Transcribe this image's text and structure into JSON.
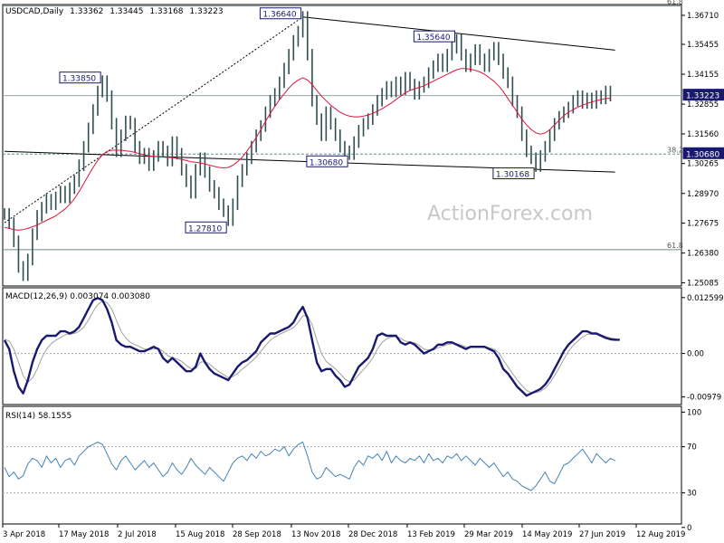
{
  "chart_data": {
    "type": "line",
    "price_panel": {
      "title": "USDCAD,Daily",
      "ohlc": [
        "1.33362",
        "1.33445",
        "1.33168",
        "1.33223"
      ],
      "current_price": "1.33223",
      "ylim": [
        1.2495,
        1.3718
      ],
      "y_ticks": [
        1.3671,
        1.3545,
        1.3415,
        1.3285,
        1.3156,
        1.3027,
        1.2897,
        1.2768,
        1.2638,
        1.2509
      ],
      "y_tick_labels": [
        "1.36710",
        "1.35455",
        "1.34155",
        "1.32855",
        "1.31560",
        "1.30265",
        "1.28970",
        "1.27675",
        "1.26380",
        "1.25085"
      ],
      "fib_levels": [
        {
          "label": "61.8",
          "value": 1.3712
        },
        {
          "label": "38.2",
          "value": 1.3068
        },
        {
          "label": "61.8",
          "value": 1.2653
        }
      ],
      "price_level_right": "1.30680",
      "series": [
        {
          "name": "price",
          "color": "#2f4f4f",
          "values": [
            1.2808,
            1.2768,
            1.2689,
            1.2578,
            1.2542,
            1.261,
            1.272,
            1.28,
            1.2835,
            1.287,
            1.285,
            1.288,
            1.2905,
            1.288,
            1.292,
            1.295,
            1.302,
            1.31,
            1.318,
            1.326,
            1.334,
            1.3385,
            1.332,
            1.32,
            1.308,
            1.315,
            1.321,
            1.32,
            1.31,
            1.305,
            1.307,
            1.302,
            1.306,
            1.31,
            1.308,
            1.304,
            1.312,
            1.307,
            1.3,
            1.295,
            1.29,
            1.3,
            1.305,
            1.299,
            1.293,
            1.29,
            1.285,
            1.282,
            1.2781,
            1.285,
            1.295,
            1.3,
            1.305,
            1.31,
            1.315,
            1.319,
            1.325,
            1.33,
            1.333,
            1.338,
            1.344,
            1.35,
            1.356,
            1.36,
            1.3664,
            1.35,
            1.33,
            1.322,
            1.315,
            1.325,
            1.32,
            1.315,
            1.31,
            1.308,
            1.3068,
            1.312,
            1.317,
            1.32,
            1.322,
            1.326,
            1.33,
            1.333,
            1.336,
            1.334,
            1.338,
            1.335,
            1.34,
            1.337,
            1.333,
            1.336,
            1.338,
            1.342,
            1.345,
            1.348,
            1.345,
            1.35,
            1.353,
            1.3564,
            1.35,
            1.345,
            1.348,
            1.352,
            1.348,
            1.345,
            1.35,
            1.353,
            1.348,
            1.342,
            1.338,
            1.33,
            1.325,
            1.315,
            1.308,
            1.305,
            1.3016,
            1.306,
            1.31,
            1.315,
            1.32,
            1.323,
            1.325,
            1.327,
            1.33,
            1.332,
            1.329,
            1.331,
            1.329,
            1.332,
            1.331,
            1.334,
            1.3322
          ]
        },
        {
          "name": "ma",
          "color": "#dc143c",
          "values": [
            1.275,
            1.2745,
            1.274,
            1.2738,
            1.274,
            1.2745,
            1.2752,
            1.276,
            1.277,
            1.278,
            1.279,
            1.28,
            1.2815,
            1.283,
            1.285,
            1.2875,
            1.2905,
            1.294,
            1.2975,
            1.301,
            1.304,
            1.3065,
            1.308,
            1.3085,
            1.3085,
            1.3085,
            1.3082,
            1.308,
            1.3075,
            1.307,
            1.3065,
            1.306,
            1.3058,
            1.3056,
            1.3055,
            1.3054,
            1.3053,
            1.305,
            1.3045,
            1.304,
            1.3035,
            1.3033,
            1.303,
            1.3025,
            1.302,
            1.3015,
            1.301,
            1.3008,
            1.301,
            1.302,
            1.3035,
            1.3055,
            1.308,
            1.311,
            1.314,
            1.3175,
            1.321,
            1.3245,
            1.3275,
            1.3305,
            1.333,
            1.3355,
            1.3375,
            1.339,
            1.34,
            1.339,
            1.337,
            1.3345,
            1.332,
            1.33,
            1.328,
            1.3265,
            1.325,
            1.324,
            1.3233,
            1.323,
            1.323,
            1.3233,
            1.3238,
            1.3245,
            1.3255,
            1.3265,
            1.3278,
            1.329,
            1.3305,
            1.332,
            1.3335,
            1.3345,
            1.3352,
            1.3358,
            1.3365,
            1.3375,
            1.3385,
            1.3395,
            1.3405,
            1.3415,
            1.3425,
            1.3435,
            1.344,
            1.344,
            1.3437,
            1.3432,
            1.3425,
            1.3415,
            1.34,
            1.3385,
            1.3365,
            1.334,
            1.331,
            1.328,
            1.325,
            1.322,
            1.3195,
            1.3175,
            1.316,
            1.3155,
            1.316,
            1.3175,
            1.3195,
            1.3215,
            1.3235,
            1.325,
            1.3262,
            1.3272,
            1.328,
            1.3288,
            1.3295,
            1.33,
            1.3305,
            1.331,
            1.331
          ]
        }
      ],
      "annotations": [
        {
          "label": "1.36640",
          "i": 64,
          "value": 1.3664
        },
        {
          "label": "1.33850",
          "i": 21,
          "value": 1.3385
        },
        {
          "label": "1.35640",
          "i": 97,
          "value": 1.3564
        },
        {
          "label": "1.27810",
          "i": 48,
          "value": 1.2781
        },
        {
          "label": "1.30680",
          "i": 74,
          "value": 1.3068
        },
        {
          "label": "1.30168",
          "i": 114,
          "value": 1.3016
        }
      ],
      "trendlines": [
        {
          "style": "dotted",
          "from": [
            0,
            1.277
          ],
          "to": [
            64,
            1.3664
          ]
        },
        {
          "style": "solid",
          "from": [
            64,
            1.3664
          ],
          "to": [
            131,
            1.352
          ]
        },
        {
          "style": "solid",
          "from": [
            0,
            1.308
          ],
          "to": [
            131,
            1.299
          ]
        }
      ],
      "watermark": "ActionForex.com"
    },
    "macd_panel": {
      "title": "MACD(12,26,9) 0.003074 0.003080",
      "ylim": [
        -0.0115,
        0.0148
      ],
      "y_ticks": [
        0.012599,
        0.0,
        -0.00979
      ],
      "y_tick_labels": [
        "0.012599",
        "0.00",
        "-0.00979"
      ],
      "series": [
        {
          "name": "macd",
          "color": "#191970",
          "values": [
            0.003,
            0.001,
            -0.004,
            -0.0075,
            -0.009,
            -0.006,
            -0.002,
            0.001,
            0.003,
            0.004,
            0.004,
            0.004,
            0.005,
            0.005,
            0.0045,
            0.005,
            0.006,
            0.008,
            0.01,
            0.012,
            0.0125,
            0.012,
            0.01,
            0.007,
            0.003,
            0.002,
            0.0015,
            0.0015,
            0.001,
            0.0005,
            0.0005,
            0.001,
            0.0015,
            0.001,
            -0.001,
            -0.002,
            -0.001,
            -0.002,
            -0.003,
            -0.004,
            -0.004,
            -0.003,
            0.0,
            -0.002,
            -0.0035,
            -0.0045,
            -0.005,
            -0.0055,
            -0.006,
            -0.0045,
            -0.003,
            -0.002,
            -0.0015,
            -0.0005,
            0.0005,
            0.0025,
            0.0035,
            0.0045,
            0.0045,
            0.005,
            0.0055,
            0.006,
            0.007,
            0.009,
            0.0105,
            0.008,
            0.003,
            -0.002,
            -0.004,
            -0.0035,
            -0.0035,
            -0.005,
            -0.006,
            -0.0075,
            -0.007,
            -0.005,
            -0.003,
            -0.002,
            -0.001,
            0.001,
            0.004,
            0.0045,
            0.004,
            0.004,
            0.004,
            0.0025,
            0.002,
            0.0025,
            0.002,
            0.001,
            0.0,
            0.0005,
            0.001,
            0.002,
            0.002,
            0.0025,
            0.0025,
            0.002,
            0.0015,
            0.001,
            0.0015,
            0.0015,
            0.0015,
            0.0015,
            0.001,
            0.0005,
            -0.001,
            -0.0035,
            -0.0045,
            -0.006,
            -0.0075,
            -0.0085,
            -0.0095,
            -0.009,
            -0.0085,
            -0.008,
            -0.007,
            -0.0055,
            -0.0035,
            -0.0015,
            0.0005,
            0.002,
            0.003,
            0.004,
            0.005,
            0.005,
            0.0045,
            0.0045,
            0.004,
            0.0035,
            0.0032,
            0.0031,
            0.0031
          ]
        },
        {
          "name": "signal",
          "color": "#a0a0a0",
          "values": [
            0.0032,
            0.0028,
            0.001,
            -0.002,
            -0.005,
            -0.0065,
            -0.0055,
            -0.0035,
            -0.001,
            0.001,
            0.0022,
            0.003,
            0.0036,
            0.0042,
            0.0044,
            0.0045,
            0.005,
            0.006,
            0.0075,
            0.0095,
            0.011,
            0.0118,
            0.0115,
            0.01,
            0.0075,
            0.005,
            0.0035,
            0.0025,
            0.002,
            0.0015,
            0.001,
            0.0009,
            0.001,
            0.0011,
            0.0005,
            -0.0005,
            -0.001,
            -0.0012,
            -0.0018,
            -0.0027,
            -0.0034,
            -0.0034,
            -0.002,
            -0.0018,
            -0.0024,
            -0.0033,
            -0.0041,
            -0.0048,
            -0.0054,
            -0.0052,
            -0.0045,
            -0.0035,
            -0.0027,
            -0.0018,
            -0.0008,
            0.0005,
            0.0018,
            0.003,
            0.0037,
            0.0043,
            0.0048,
            0.0053,
            0.0058,
            0.007,
            0.0085,
            0.0085,
            0.0065,
            0.003,
            0.0,
            -0.0018,
            -0.0026,
            -0.0035,
            -0.0045,
            -0.0057,
            -0.0064,
            -0.006,
            -0.0048,
            -0.0036,
            -0.0024,
            -0.001,
            0.001,
            0.0025,
            0.0033,
            0.0037,
            0.0039,
            0.0034,
            0.0028,
            0.0026,
            0.0024,
            0.0018,
            0.001,
            0.0008,
            0.0008,
            0.0013,
            0.0016,
            0.002,
            0.0022,
            0.0022,
            0.0019,
            0.0015,
            0.0015,
            0.0015,
            0.0015,
            0.0015,
            0.0013,
            0.001,
            0.0002,
            -0.0015,
            -0.003,
            -0.0045,
            -0.006,
            -0.0072,
            -0.0083,
            -0.0088,
            -0.0088,
            -0.0085,
            -0.0078,
            -0.0066,
            -0.005,
            -0.0032,
            -0.0013,
            0.0005,
            0.0018,
            0.0028,
            0.0037,
            0.0043,
            0.0044,
            0.0044,
            0.0042,
            0.0038,
            0.0035,
            0.0033,
            0.0031
          ]
        }
      ]
    },
    "rsi_panel": {
      "title": "RSI(14) 58.1555",
      "ylim": [
        3,
        105
      ],
      "y_ticks": [
        100,
        70,
        30,
        0
      ],
      "y_tick_labels": [
        "100",
        "70",
        "30",
        "0"
      ],
      "series": [
        {
          "name": "rsi",
          "color": "#4682b4",
          "values": [
            52,
            44,
            48,
            42,
            45,
            55,
            60,
            58,
            52,
            62,
            56,
            60,
            52,
            58,
            60,
            54,
            62,
            66,
            70,
            72,
            74,
            72,
            64,
            55,
            50,
            58,
            62,
            56,
            50,
            54,
            58,
            52,
            56,
            50,
            44,
            48,
            56,
            50,
            46,
            52,
            60,
            54,
            50,
            46,
            52,
            48,
            44,
            40,
            48,
            56,
            60,
            62,
            58,
            64,
            60,
            66,
            62,
            64,
            68,
            66,
            70,
            62,
            68,
            72,
            74,
            62,
            48,
            42,
            44,
            52,
            48,
            44,
            46,
            44,
            42,
            52,
            58,
            54,
            62,
            60,
            64,
            58,
            66,
            56,
            62,
            58,
            56,
            60,
            58,
            62,
            56,
            64,
            58,
            60,
            56,
            62,
            60,
            64,
            58,
            62,
            58,
            54,
            60,
            56,
            52,
            56,
            50,
            44,
            48,
            42,
            40,
            36,
            34,
            32,
            36,
            42,
            48,
            40,
            38,
            46,
            54,
            56,
            60,
            64,
            68,
            62,
            56,
            64,
            60,
            56,
            60,
            58
          ]
        }
      ]
    },
    "x_tick_labels": [
      "3 Apr 2018",
      "17 May 2018",
      "2 Jul 2018",
      "15 Aug 2018",
      "28 Sep 2018",
      "13 Nov 2018",
      "28 Dec 2018",
      "13 Feb 2019",
      "29 Mar 2019",
      "14 May 2019",
      "27 Jun 2019",
      "12 Aug 2019"
    ],
    "x_tick_index": [
      0,
      13,
      26,
      40,
      53,
      66,
      79,
      92,
      105,
      118,
      131,
      144
    ]
  }
}
